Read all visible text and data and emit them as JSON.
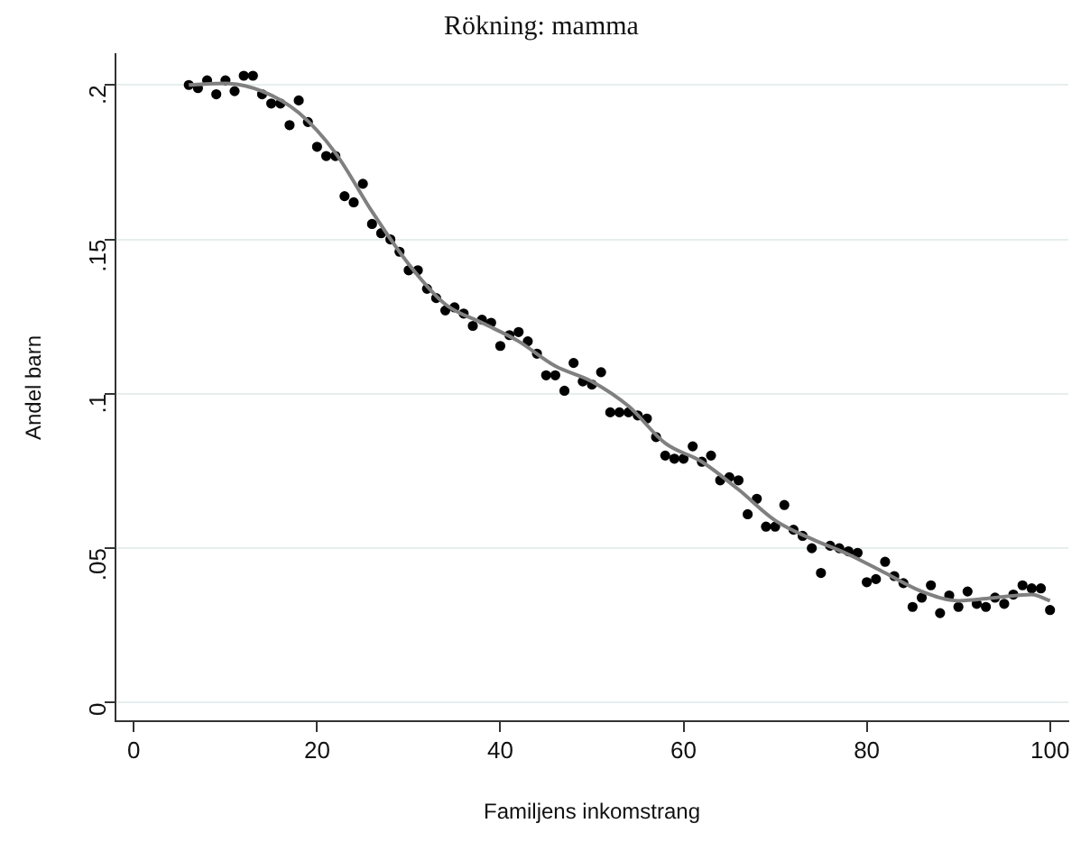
{
  "chart_data": {
    "type": "scatter",
    "title": "Rökning: mamma",
    "xlabel": "Familjens inkomstrang",
    "ylabel": "Andel barn",
    "xlim": [
      -2,
      102
    ],
    "xticks": [
      0,
      20,
      40,
      60,
      80,
      100
    ],
    "ylim": [
      -0.006,
      0.21
    ],
    "yticks": [
      {
        "value": 0,
        "label": "0"
      },
      {
        "value": 0.05,
        "label": ".05"
      },
      {
        "value": 0.1,
        "label": ".1"
      },
      {
        "value": 0.15,
        "label": ".15"
      },
      {
        "value": 0.2,
        "label": ".2"
      }
    ],
    "grid": "y",
    "legend": false,
    "marker": "circle",
    "series": [
      {
        "type": "scatter",
        "color": "#000000",
        "x": [
          6,
          7,
          8,
          9,
          10,
          11,
          12,
          13,
          14,
          15,
          16,
          17,
          18,
          19,
          20,
          21,
          22,
          23,
          24,
          25,
          26,
          27,
          28,
          29,
          30,
          31,
          32,
          33,
          34,
          35,
          36,
          37,
          38,
          39,
          40,
          41,
          42,
          43,
          44,
          45,
          46,
          47,
          48,
          49,
          50,
          51,
          52,
          53,
          54,
          55,
          56,
          57,
          58,
          59,
          60,
          61,
          62,
          63,
          64,
          65,
          66,
          67,
          68,
          69,
          70,
          71,
          72,
          73,
          74,
          75,
          76,
          77,
          78,
          79,
          80,
          81,
          82,
          83,
          84,
          85,
          86,
          87,
          88,
          89,
          90,
          91,
          92,
          93,
          94,
          95,
          96,
          97,
          98,
          99,
          100
        ],
        "values": [
          0.2,
          0.199,
          0.2015,
          0.197,
          0.2015,
          0.198,
          0.203,
          0.203,
          0.197,
          0.194,
          0.194,
          0.187,
          0.195,
          0.188,
          0.18,
          0.177,
          0.177,
          0.164,
          0.162,
          0.168,
          0.155,
          0.152,
          0.15,
          0.146,
          0.14,
          0.14,
          0.134,
          0.131,
          0.127,
          0.128,
          0.126,
          0.122,
          0.124,
          0.123,
          0.1155,
          0.119,
          0.12,
          0.117,
          0.113,
          0.106,
          0.106,
          0.101,
          0.11,
          0.104,
          0.103,
          0.107,
          0.094,
          0.094,
          0.094,
          0.093,
          0.092,
          0.086,
          0.08,
          0.079,
          0.079,
          0.083,
          0.078,
          0.08,
          0.072,
          0.073,
          0.072,
          0.061,
          0.066,
          0.057,
          0.057,
          0.064,
          0.056,
          0.054,
          0.05,
          0.042,
          0.0508,
          0.05,
          0.049,
          0.0485,
          0.039,
          0.04,
          0.0456,
          0.041,
          0.0387,
          0.031,
          0.034,
          0.038,
          0.029,
          0.0347,
          0.031,
          0.036,
          0.032,
          0.031,
          0.034,
          0.032,
          0.035,
          0.038,
          0.037,
          0.037,
          0.03
        ]
      },
      {
        "type": "line",
        "color": "#808080",
        "marker": "none",
        "x": [
          6,
          10,
          14,
          18,
          22,
          26,
          30,
          34,
          38,
          42,
          46,
          50,
          54,
          58,
          62,
          66,
          70,
          74,
          78,
          82,
          86,
          90,
          94,
          98,
          100
        ],
        "values": [
          0.2,
          0.2005,
          0.198,
          0.191,
          0.178,
          0.159,
          0.142,
          0.129,
          0.123,
          0.117,
          0.109,
          0.104,
          0.096,
          0.084,
          0.078,
          0.069,
          0.059,
          0.053,
          0.048,
          0.042,
          0.036,
          0.033,
          0.034,
          0.035,
          0.033
        ]
      }
    ]
  }
}
